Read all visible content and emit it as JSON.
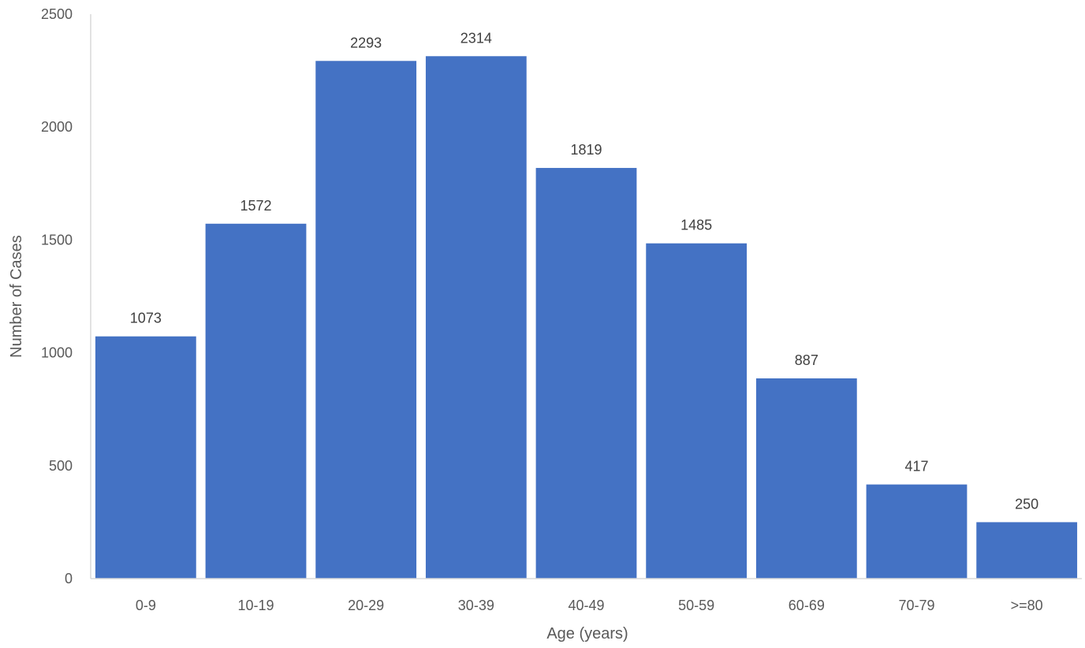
{
  "chart_data": {
    "type": "bar",
    "title": "",
    "xlabel": "Age (years)",
    "ylabel": "Number of Cases",
    "ylim": [
      0,
      2500
    ],
    "yticks": [
      0,
      500,
      1000,
      1500,
      2000,
      2500
    ],
    "categories": [
      "0-9",
      "10-19",
      "20-29",
      "30-39",
      "40-49",
      "50-59",
      "60-69",
      "70-79",
      ">=80"
    ],
    "values": [
      1073,
      1572,
      2293,
      2314,
      1819,
      1485,
      887,
      417,
      250
    ],
    "data_labels": [
      "1073",
      "1572",
      "2293",
      "2314",
      "1819",
      "1485",
      "887",
      "417",
      "250"
    ],
    "grid": false,
    "legend": "none",
    "bar_color": "#4472C4",
    "axis_color": "#D9D9D9"
  }
}
